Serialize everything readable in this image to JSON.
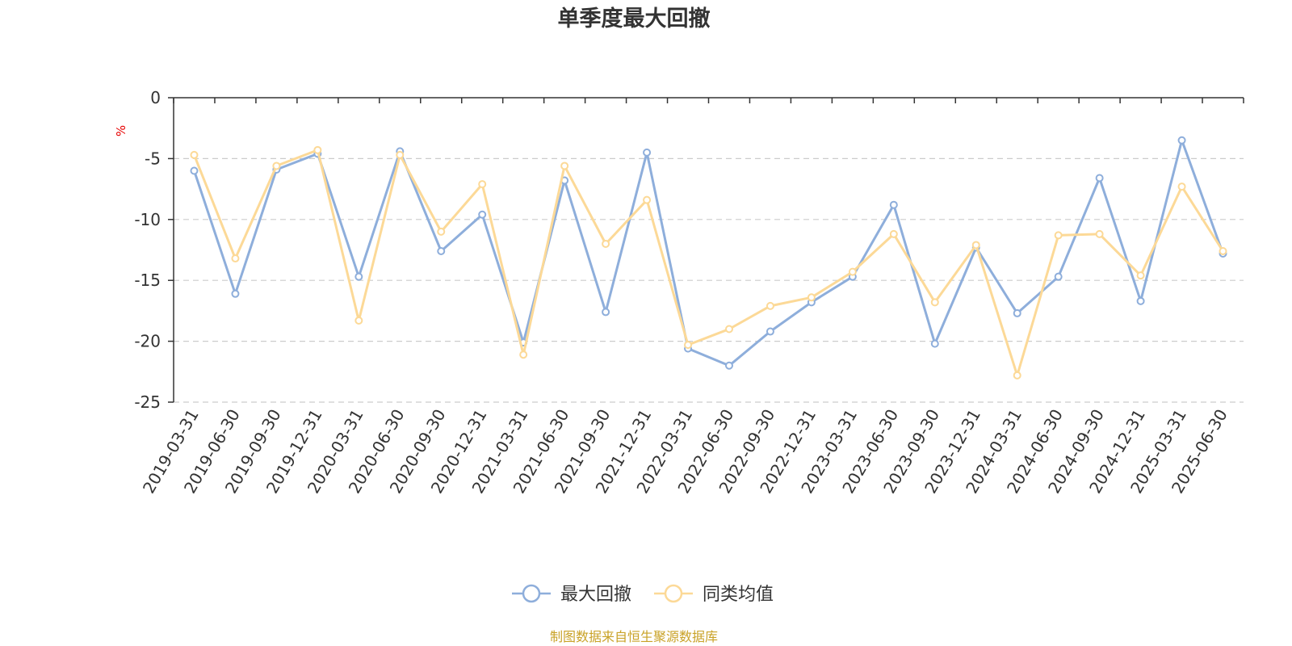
{
  "chart_data": {
    "type": "line",
    "title": "单季度最大回撤",
    "ylabel": "%",
    "ylim": [
      -25,
      0
    ],
    "yticks": [
      "0",
      "-5",
      "-10",
      "-15",
      "-20",
      "-25"
    ],
    "grid": true,
    "legend_position": "bottom",
    "categories": [
      "2019-03-31",
      "2019-06-30",
      "2019-09-30",
      "2019-12-31",
      "2020-03-31",
      "2020-06-30",
      "2020-09-30",
      "2020-12-31",
      "2021-03-31",
      "2021-06-30",
      "2021-09-30",
      "2021-12-31",
      "2022-03-31",
      "2022-06-30",
      "2022-09-30",
      "2022-12-31",
      "2023-03-31",
      "2023-06-30",
      "2023-09-30",
      "2023-12-31",
      "2024-03-31",
      "2024-06-30",
      "2024-09-30",
      "2024-12-31",
      "2025-03-31",
      "2025-06-30"
    ],
    "series": [
      {
        "name": "最大回撤",
        "color": "#8eaedb",
        "values": [
          -6.0,
          -16.1,
          -5.9,
          -4.6,
          -14.7,
          -4.4,
          -12.6,
          -9.6,
          -20.1,
          -6.8,
          -17.6,
          -4.5,
          -20.6,
          -22.0,
          -19.2,
          -16.8,
          -14.7,
          -8.8,
          -20.2,
          -12.3,
          -17.7,
          -14.7,
          -6.6,
          -16.7,
          -3.5,
          -12.8
        ]
      },
      {
        "name": "同类均值",
        "color": "#fcd997",
        "values": [
          -4.7,
          -13.2,
          -5.6,
          -4.3,
          -18.3,
          -4.7,
          -11.0,
          -7.1,
          -21.1,
          -5.6,
          -12.0,
          -8.4,
          -20.3,
          -19.0,
          -17.1,
          -16.4,
          -14.3,
          -11.2,
          -16.8,
          -12.1,
          -22.8,
          -11.3,
          -11.2,
          -14.6,
          -7.3,
          -12.6
        ]
      }
    ],
    "source": "制图数据来自恒生聚源数据库"
  }
}
